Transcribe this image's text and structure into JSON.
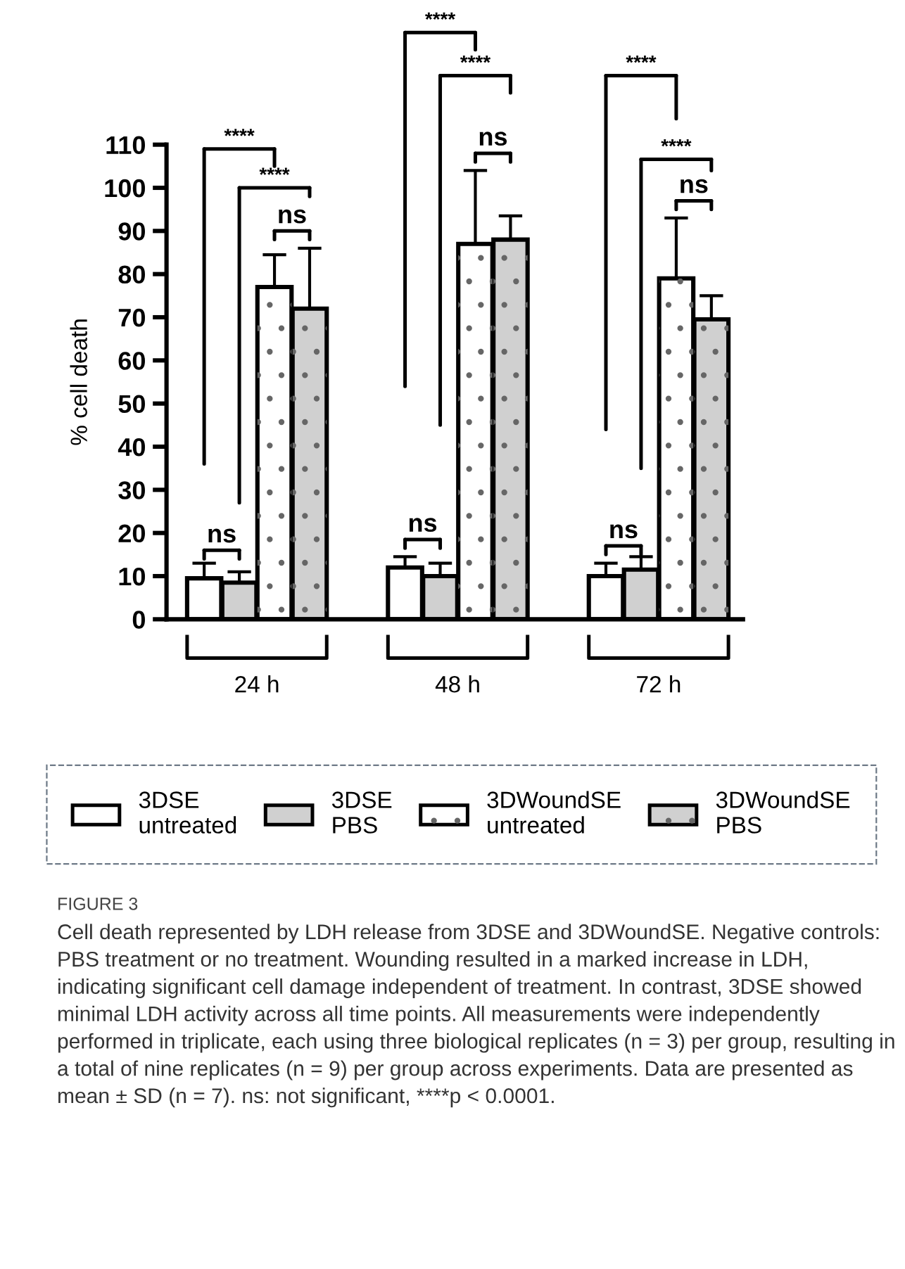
{
  "chart_data": {
    "type": "bar",
    "title": "FIGURE 3",
    "ylabel": "% cell death",
    "categories": [
      "24 h",
      "48 h",
      "72 h"
    ],
    "series": [
      {
        "name": "3DSE\nuntreated",
        "color": "#ffffff",
        "values": [
          9.5,
          12,
          10
        ],
        "errors": [
          [
            9.5,
            13
          ],
          [
            12,
            14.5
          ],
          [
            10,
            13
          ]
        ]
      },
      {
        "name": "3DSE\nPBS",
        "color": "#d0d0d0",
        "values": [
          8.5,
          10,
          11.5
        ],
        "errors": [
          [
            8.5,
            11
          ],
          [
            10,
            13
          ],
          [
            11.5,
            14.5
          ]
        ]
      },
      {
        "name": "3DWoundSE\nuntreated",
        "color": "#ffffff",
        "values": [
          77,
          87,
          79
        ],
        "errors": [
          [
            77,
            84.5
          ],
          [
            87,
            104
          ],
          [
            79,
            93
          ]
        ]
      },
      {
        "name": "3DWoundSE\nPBS",
        "color": "#d0d0d0",
        "values": [
          72,
          88,
          69.5
        ],
        "errors": [
          [
            72,
            86
          ],
          [
            88,
            93.5
          ],
          [
            69.5,
            75
          ]
        ]
      }
    ],
    "ylim": [
      0,
      110
    ],
    "yticks": [
      0,
      10,
      20,
      30,
      40,
      50,
      60,
      70,
      80,
      90,
      100,
      110
    ],
    "grid": false,
    "legend": "bottom",
    "annotations": [
      "****",
      "****",
      "ns",
      "ns",
      "****",
      "****",
      "ns",
      "ns",
      "****",
      "****",
      "ns",
      "ns",
      "Cell death represented by LDH release from 3DSE and 3DWoundSE. Negative controls: PBS treatment or no treatment. Wounding resulted in a marked increase in LDH, indicating significant cell damage independent of treatment. In contrast, 3DSE showed minimal LDH activity across all time points. All measurements were independently performed in triplicate, each using three biological replicates (n = 3) per group, resulting in a total of nine replicates (n = 9) per group across experiments. Data are presented as mean ± SD (n = 7). ns: not significant, ****p < 0.0001."
    ]
  }
}
